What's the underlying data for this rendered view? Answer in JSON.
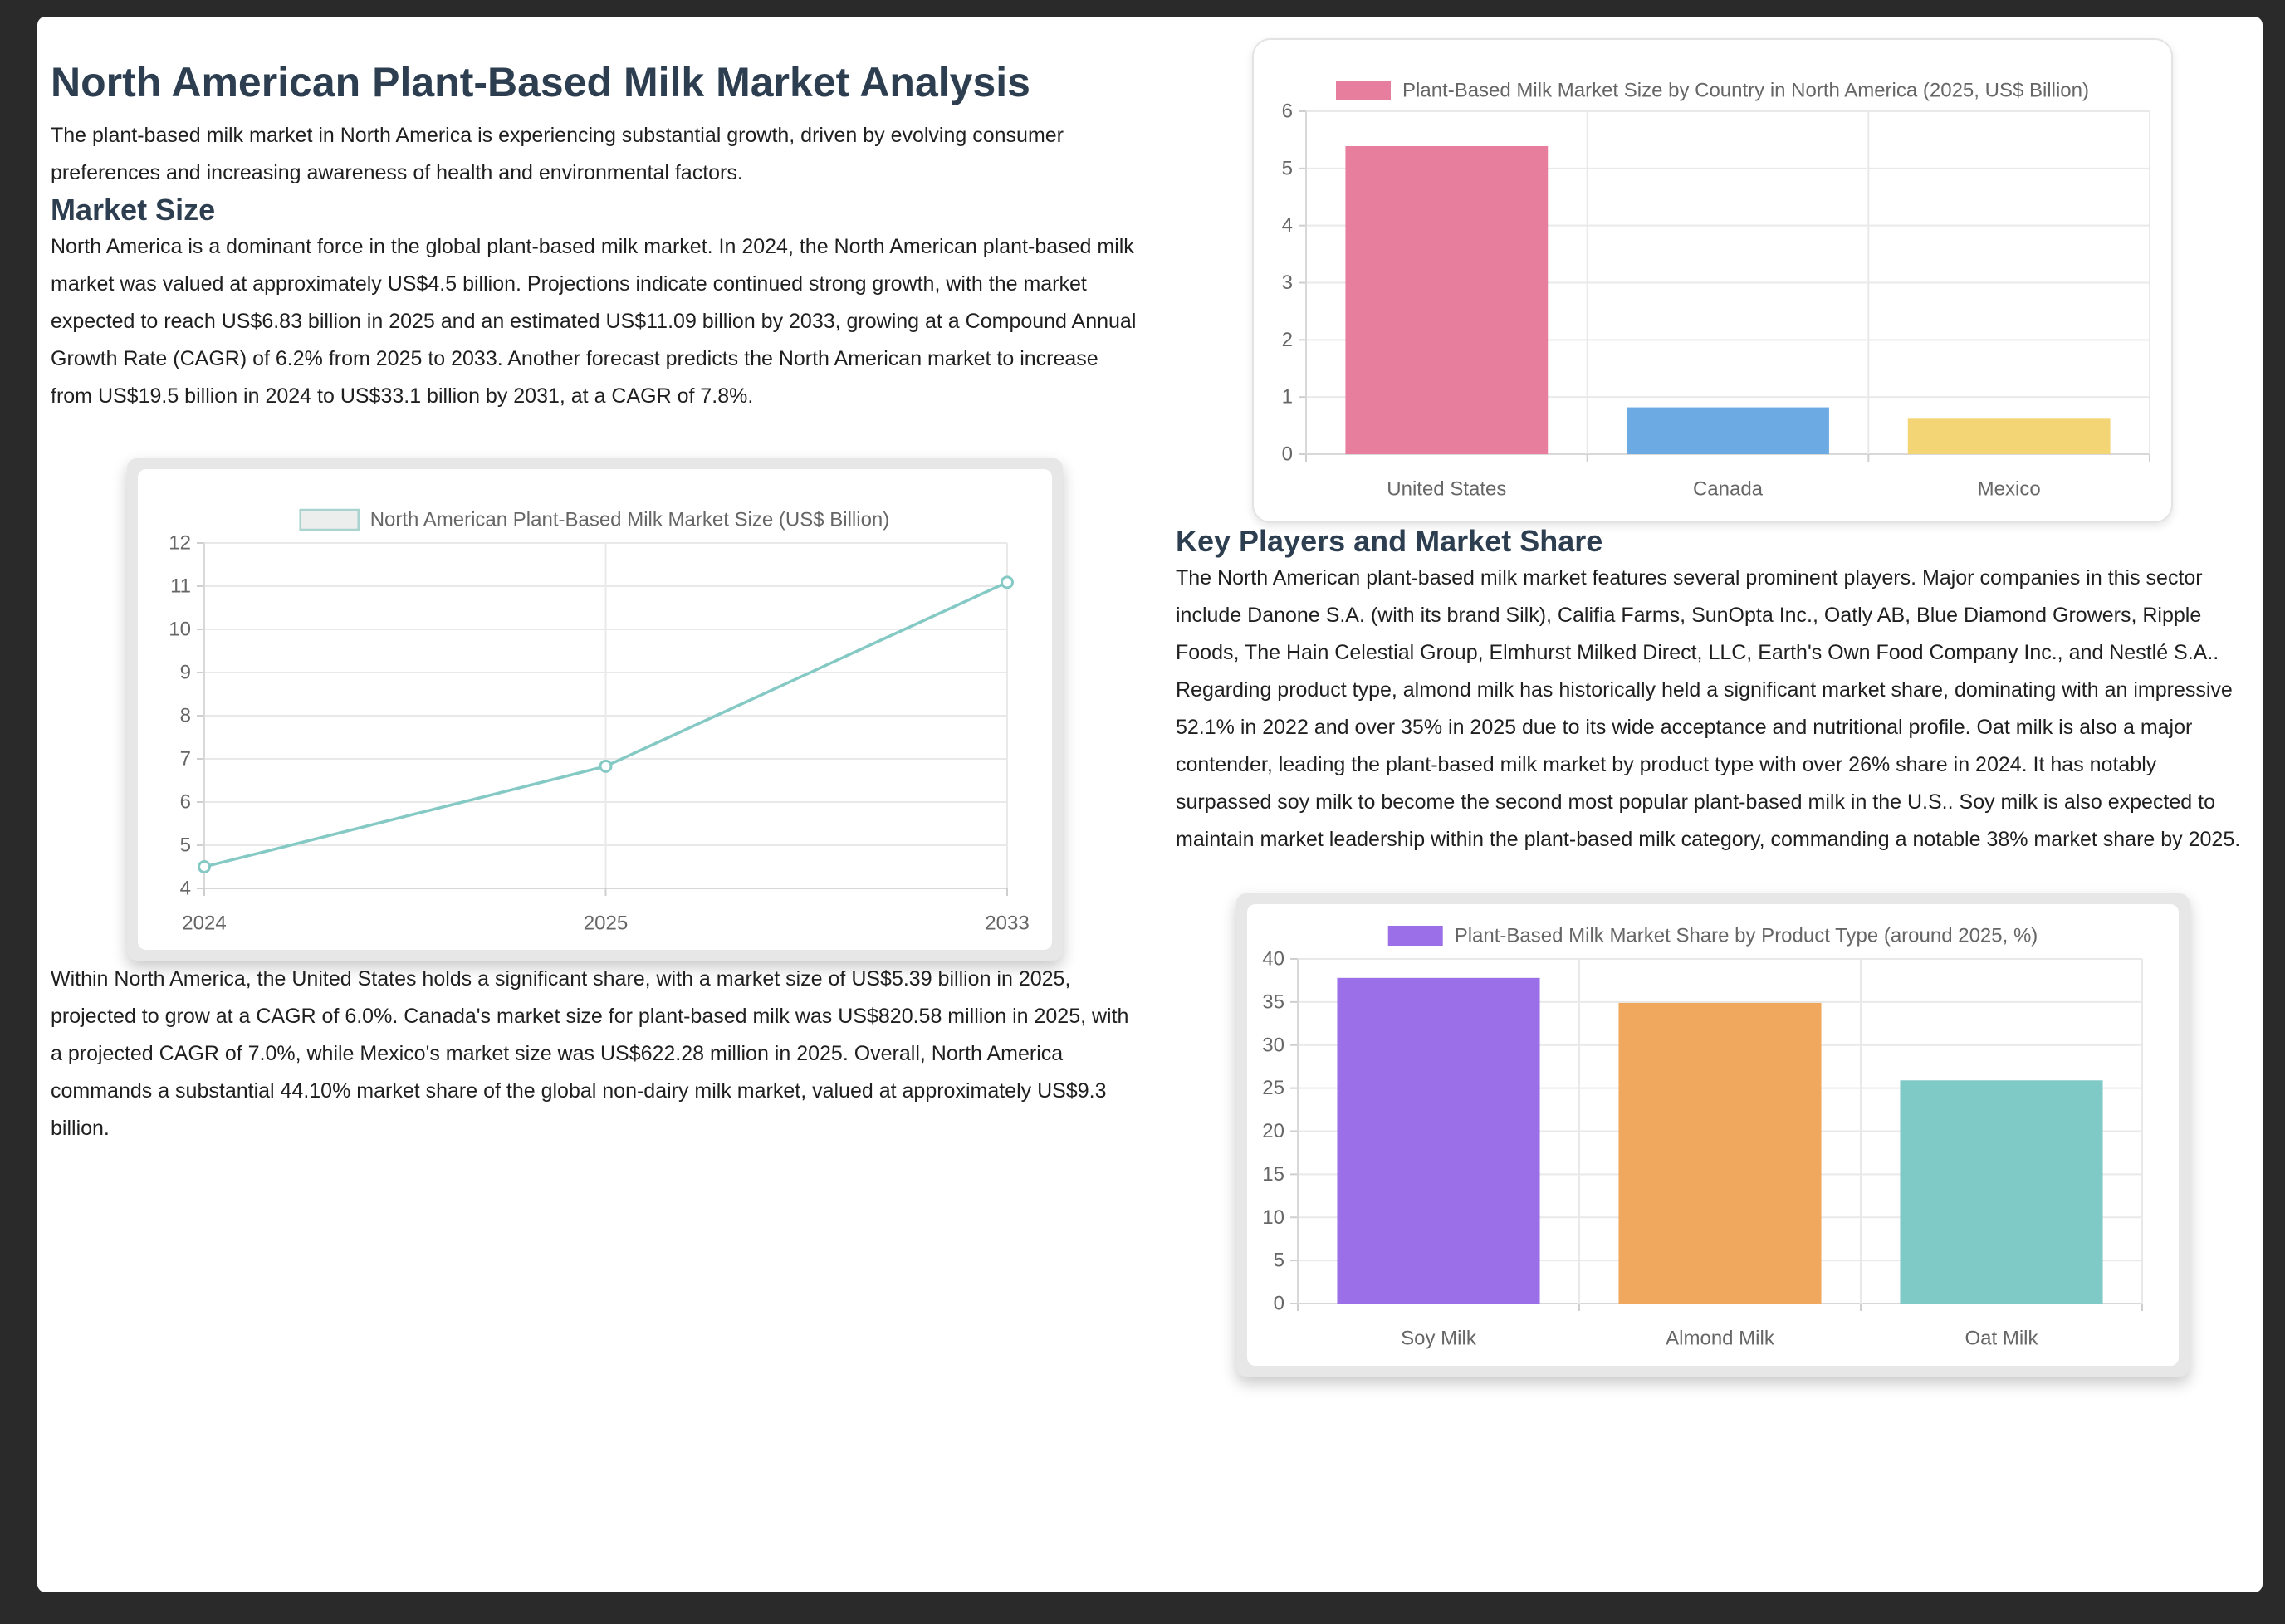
{
  "doc": {
    "title": "North American Plant-Based Milk Market Analysis",
    "intro": "The plant-based milk market in North America is experiencing substantial growth, driven by evolving consumer preferences and increasing awareness of health and environmental factors.",
    "market_size_heading": "Market Size",
    "market_size_p1": "North America is a dominant force in the global plant-based milk market. In 2024, the North American plant-based milk market was valued at approximately US$4.5 billion. Projections indicate continued strong growth, with the market expected to reach US$6.83 billion in 2025 and an estimated US$11.09 billion by 2033, growing at a Compound Annual Growth Rate (CAGR) of 6.2% from 2025 to 2033. Another forecast predicts the North American market to increase from US$19.5 billion in 2024 to US$33.1 billion by 2031, at a CAGR of 7.8%.",
    "market_size_p2": "Within North America, the United States holds a significant share, with a market size of US$5.39 billion in 2025, projected to grow at a CAGR of 6.0%. Canada's market size for plant-based milk was US$820.58 million in 2025, with a projected CAGR of 7.0%, while Mexico's market size was US$622.28 million in 2025. Overall, North America commands a substantial 44.10% market share of the global non-dairy milk market, valued at approximately US$9.3 billion.",
    "key_players_heading": "Key Players and Market Share",
    "key_players_p1": "The North American plant-based milk market features several prominent players. Major companies in this sector include Danone S.A. (with its brand Silk), Califia Farms, SunOpta Inc., Oatly AB, Blue Diamond Growers, Ripple Foods, The Hain Celestial Group, Elmhurst Milked Direct, LLC, Earth's Own Food Company Inc., and Nestlé S.A..",
    "key_players_p2": "Regarding product type, almond milk has historically held a significant market share, dominating with an impressive 52.1% in 2022 and over 35% in 2025 due to its wide acceptance and nutritional profile. Oat milk is also a major contender, leading the plant-based milk market by product type with over 26% share in 2024. It has notably surpassed soy milk to become the second most popular plant-based milk in the U.S.. Soy milk is also expected to maintain market leadership within the plant-based milk category, commanding a notable 38% market share by 2025."
  },
  "colors": {
    "heading": "#2c3e50",
    "body_text": "#1f1f1f",
    "page_background": "#2a2a2a",
    "panel_background": "#ffffff",
    "tick_text": "#666666",
    "gridline": "#e9e9e9"
  },
  "chart_data": [
    {
      "type": "line",
      "title": "North American Plant-Based Milk Market Size (US$ Billion)",
      "categories": [
        "2024",
        "2025",
        "2033"
      ],
      "values": [
        4.5,
        6.83,
        11.09
      ],
      "xlabel": "",
      "ylabel": "",
      "ylim": [
        4,
        12
      ],
      "ytick_step": 1,
      "grid": true,
      "legend_position": "top",
      "line_color": "#85c9c5",
      "marker": "open-circle",
      "legend_swatch_fill": "#ebeeed",
      "legend_swatch_border": "#a9d3cf"
    },
    {
      "type": "bar",
      "title": "Plant-Based Milk Market Size by Country in North America (2025, US$ Billion)",
      "categories": [
        "United States",
        "Canada",
        "Mexico"
      ],
      "values": [
        5.39,
        0.82,
        0.62
      ],
      "xlabel": "",
      "ylabel": "",
      "ylim": [
        0,
        6
      ],
      "ytick_step": 1,
      "grid": true,
      "legend_position": "top",
      "bar_colors": [
        "#e87e9d",
        "#6caae4",
        "#f3d576"
      ]
    },
    {
      "type": "bar",
      "title": "Plant-Based Milk Market Share by Product Type (around 2025, %)",
      "categories": [
        "Soy Milk",
        "Almond Milk",
        "Oat Milk"
      ],
      "values": [
        37.8,
        34.9,
        25.9
      ],
      "xlabel": "",
      "ylabel": "",
      "ylim": [
        0,
        40
      ],
      "ytick_step": 5,
      "grid": true,
      "legend_position": "top",
      "bar_colors": [
        "#9a6fe8",
        "#f0a85f",
        "#7fc9c6"
      ]
    }
  ]
}
